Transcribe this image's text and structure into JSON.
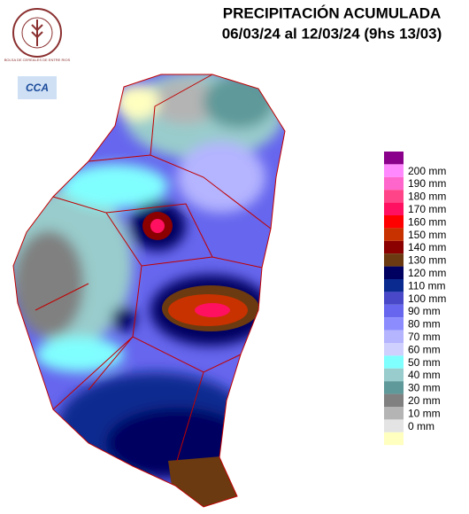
{
  "header": {
    "title": "PRECIPITACIÓN ACUMULADA",
    "subtitle": "06/03/24 al 12/03/24 (9hs 13/03)"
  },
  "logos": {
    "bolsa": "BOLSA DE CEREALES DE ENTRE RIOS",
    "cca": "CCA"
  },
  "legend": {
    "top_color": "#8b008b",
    "items": [
      {
        "label": "200 mm",
        "color": "#ff88ff"
      },
      {
        "label": "190 mm",
        "color": "#ff66cc"
      },
      {
        "label": "180 mm",
        "color": "#ff4488"
      },
      {
        "label": "170 mm",
        "color": "#ff1060"
      },
      {
        "label": "160 mm",
        "color": "#ff0000"
      },
      {
        "label": "150 mm",
        "color": "#c83200"
      },
      {
        "label": "140 mm",
        "color": "#8b0000"
      },
      {
        "label": "130 mm",
        "color": "#6b3a10"
      },
      {
        "label": "120 mm",
        "color": "#000060"
      },
      {
        "label": "110 mm",
        "color": "#0a2a90"
      },
      {
        "label": "100 mm",
        "color": "#4848c8"
      },
      {
        "label": "90 mm",
        "color": "#6666ee"
      },
      {
        "label": "80 mm",
        "color": "#8c8cff"
      },
      {
        "label": "70 mm",
        "color": "#b4b4ff"
      },
      {
        "label": "60 mm",
        "color": "#d0d0ff"
      },
      {
        "label": "50 mm",
        "color": "#80ffff"
      },
      {
        "label": "40 mm",
        "color": "#99cccc"
      },
      {
        "label": "30 mm",
        "color": "#5f9999"
      },
      {
        "label": "20 mm",
        "color": "#808080"
      },
      {
        "label": "10 mm",
        "color": "#b4b4b4"
      },
      {
        "label": "0 mm",
        "color": "#e4e4e4"
      }
    ],
    "bottom_color": "#ffffc0"
  }
}
